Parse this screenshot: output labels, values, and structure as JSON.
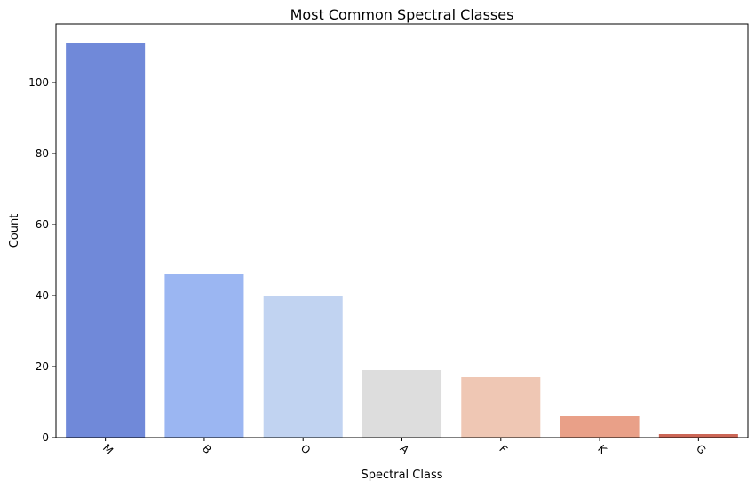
{
  "chart_data": {
    "type": "bar",
    "title": "Most Common Spectral Classes",
    "xlabel": "Spectral Class",
    "ylabel": "Count",
    "categories": [
      "M",
      "B",
      "O",
      "A",
      "F",
      "K",
      "G"
    ],
    "values": [
      111,
      46,
      40,
      19,
      17,
      6,
      1
    ],
    "colors": [
      "#7089d9",
      "#9bb6f2",
      "#c1d3f1",
      "#dddddd",
      "#efc7b4",
      "#e9a088",
      "#cc6656"
    ],
    "ylim": [
      0,
      116.5
    ],
    "yticks": [
      0,
      20,
      40,
      60,
      80,
      100
    ],
    "x_tick_rotation": 45,
    "grid": false,
    "legend": "none"
  }
}
